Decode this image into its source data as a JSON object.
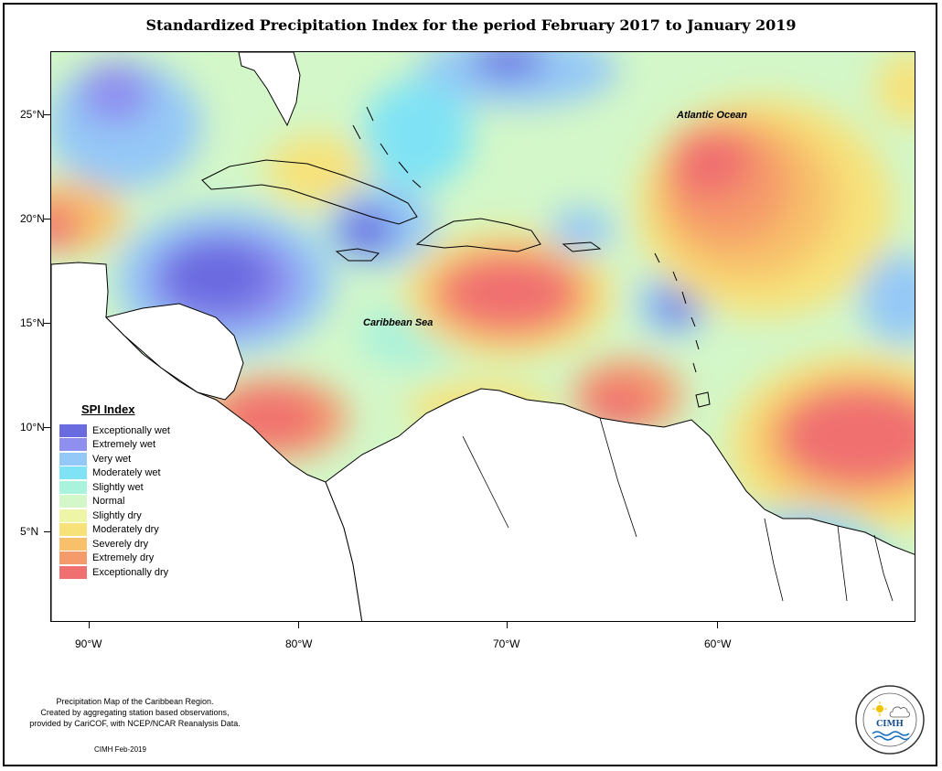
{
  "title": "Standardized Precipitation Index for the period February 2017 to January 2019",
  "map": {
    "latitude_labels": [
      "25°N",
      "20°N",
      "15°N",
      "10°N",
      "5°N"
    ],
    "longitude_labels": [
      "90°W",
      "80°W",
      "70°W",
      "60°W"
    ],
    "ocean_labels": {
      "atlantic": "Atlantic Ocean",
      "caribbean": "Caribbean Sea"
    }
  },
  "legend": {
    "title": "SPI Index",
    "items": [
      {
        "label": "Exceptionally wet",
        "color": "#6b6be0"
      },
      {
        "label": "Extremely wet",
        "color": "#8f8ff0"
      },
      {
        "label": "Very wet",
        "color": "#94c8f7"
      },
      {
        "label": "Moderately wet",
        "color": "#7fe3f5"
      },
      {
        "label": "Slightly wet",
        "color": "#a9f2dc"
      },
      {
        "label": "Normal",
        "color": "#d3f7c8"
      },
      {
        "label": "Slightly dry",
        "color": "#eef5a6"
      },
      {
        "label": "Moderately dry",
        "color": "#f7e27a"
      },
      {
        "label": "Severely dry",
        "color": "#f8c06a"
      },
      {
        "label": "Extremely dry",
        "color": "#f59a6a"
      },
      {
        "label": "Exceptionally dry",
        "color": "#f07070"
      }
    ]
  },
  "footnote": {
    "line1": "Precipitation Map of the Caribbean Region.",
    "line2": "Created by aggregating station based observations,",
    "line3": "provided by CariCOF, with NCEP/NCAR Reanalysis Data."
  },
  "stamp": "CIMH Feb-2019",
  "logo": {
    "text": "CIMH",
    "icons": [
      "sun-icon",
      "cloud-icon",
      "wave-icon"
    ]
  }
}
